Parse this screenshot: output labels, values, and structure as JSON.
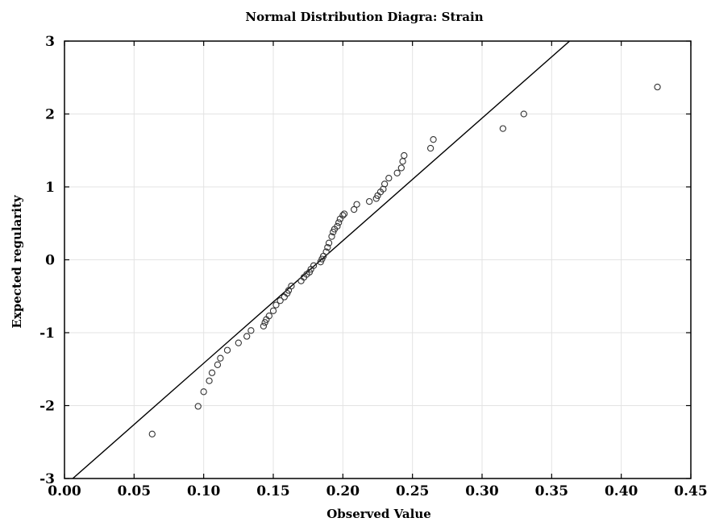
{
  "chart_data": {
    "type": "scatter",
    "title": "Normal Distribution Diagra: Strain",
    "xlabel": "Observed Value",
    "ylabel": "Expected regularity",
    "xlim": [
      0.0,
      0.45
    ],
    "ylim": [
      -3,
      3
    ],
    "x_ticks": [
      "0.00",
      "0.05",
      "0.10",
      "0.15",
      "0.20",
      "0.25",
      "0.30",
      "0.35",
      "0.40",
      "0.45"
    ],
    "y_ticks": [
      "3",
      "2",
      "1",
      "0",
      "-1",
      "-2",
      "-3"
    ],
    "grid": true,
    "marker": "open-circle",
    "colors": {
      "points": "#333333",
      "line": "#000000",
      "grid": "#e3e3e3",
      "frame": "#000000"
    },
    "reference_line": {
      "x": [
        0.0,
        0.3629
      ],
      "y": [
        -3.1,
        3.0
      ]
    },
    "series": [
      {
        "x": [
          0.063,
          0.096,
          0.1,
          0.104,
          0.106,
          0.11,
          0.112,
          0.117,
          0.125,
          0.131,
          0.134,
          0.143,
          0.144,
          0.145,
          0.147,
          0.15,
          0.152,
          0.155,
          0.158,
          0.16,
          0.161,
          0.163,
          0.17,
          0.172,
          0.174,
          0.176,
          0.177,
          0.179,
          0.184,
          0.185,
          0.186,
          0.188,
          0.189,
          0.19,
          0.192,
          0.193,
          0.194,
          0.196,
          0.197,
          0.198,
          0.2,
          0.201,
          0.208,
          0.21,
          0.219,
          0.224,
          0.225,
          0.227,
          0.229,
          0.23,
          0.233,
          0.239,
          0.242,
          0.243,
          0.244,
          0.263,
          0.265,
          0.315,
          0.33,
          0.426
        ],
        "y": [
          -2.39,
          -2.01,
          -1.81,
          -1.66,
          -1.55,
          -1.44,
          -1.35,
          -1.24,
          -1.14,
          -1.05,
          -0.97,
          -0.91,
          -0.86,
          -0.82,
          -0.77,
          -0.7,
          -0.62,
          -0.56,
          -0.51,
          -0.46,
          -0.42,
          -0.36,
          -0.29,
          -0.24,
          -0.2,
          -0.17,
          -0.13,
          -0.08,
          -0.03,
          0.01,
          0.05,
          0.11,
          0.17,
          0.23,
          0.32,
          0.38,
          0.42,
          0.46,
          0.51,
          0.56,
          0.61,
          0.63,
          0.69,
          0.76,
          0.8,
          0.84,
          0.88,
          0.93,
          0.97,
          1.04,
          1.12,
          1.19,
          1.26,
          1.35,
          1.43,
          1.53,
          1.65,
          1.8,
          2.0,
          2.37
        ]
      }
    ]
  }
}
